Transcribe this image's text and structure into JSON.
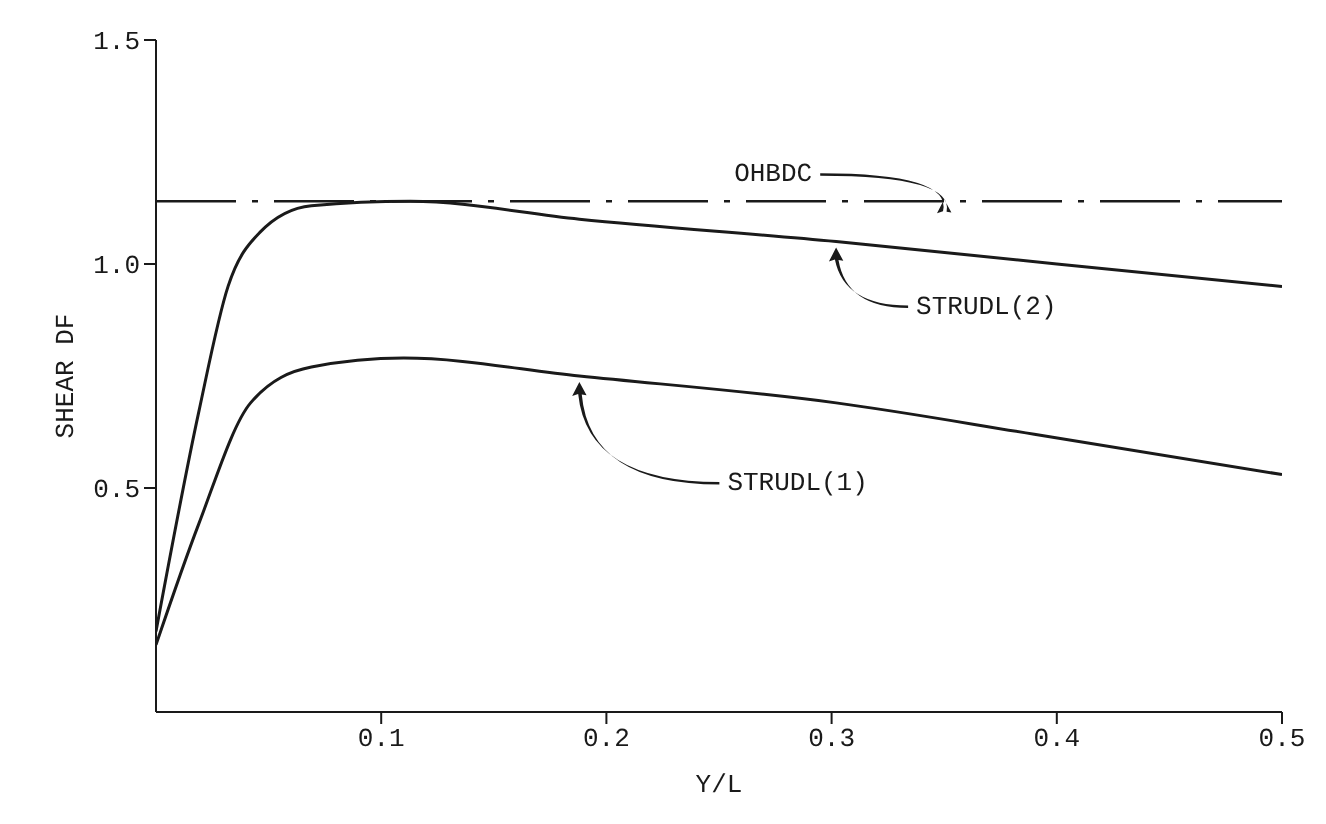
{
  "chart_data": {
    "type": "line",
    "xlabel": "Y/L",
    "ylabel": "SHEAR DF",
    "series": [
      {
        "name": "STRUDL(2)",
        "color": "#1a1a1a",
        "x": [
          0,
          0.019,
          0.032,
          0.046,
          0.069,
          0.113,
          0.188,
          0.302,
          0.4,
          0.5
        ],
        "values": [
          0.18,
          0.67,
          0.95,
          1.07,
          1.13,
          1.14,
          1.1,
          1.05,
          1.0,
          0.95
        ]
      },
      {
        "name": "STRUDL(1)",
        "color": "#1a1a1a",
        "x": [
          0,
          0.019,
          0.042,
          0.069,
          0.11,
          0.188,
          0.302,
          0.39,
          0.5
        ],
        "values": [
          0.15,
          0.42,
          0.69,
          0.77,
          0.79,
          0.75,
          0.69,
          0.62,
          0.53
        ]
      }
    ],
    "ref_lines": [
      {
        "axis": "y",
        "value": 1.14,
        "label": "OHBDC",
        "color": "#1a1a1a",
        "line_style": "dashed"
      }
    ],
    "xlim": [
      0,
      0.5
    ],
    "xticks": [
      0.1,
      0.2,
      0.3,
      0.4,
      0.5
    ],
    "ylim": [
      0,
      1.5
    ],
    "yticks": [
      0.5,
      {
        "value": 1,
        "label": "1.0"
      },
      1.5
    ],
    "grid": false,
    "legend": false,
    "marker": "none",
    "line_style": "solid"
  }
}
